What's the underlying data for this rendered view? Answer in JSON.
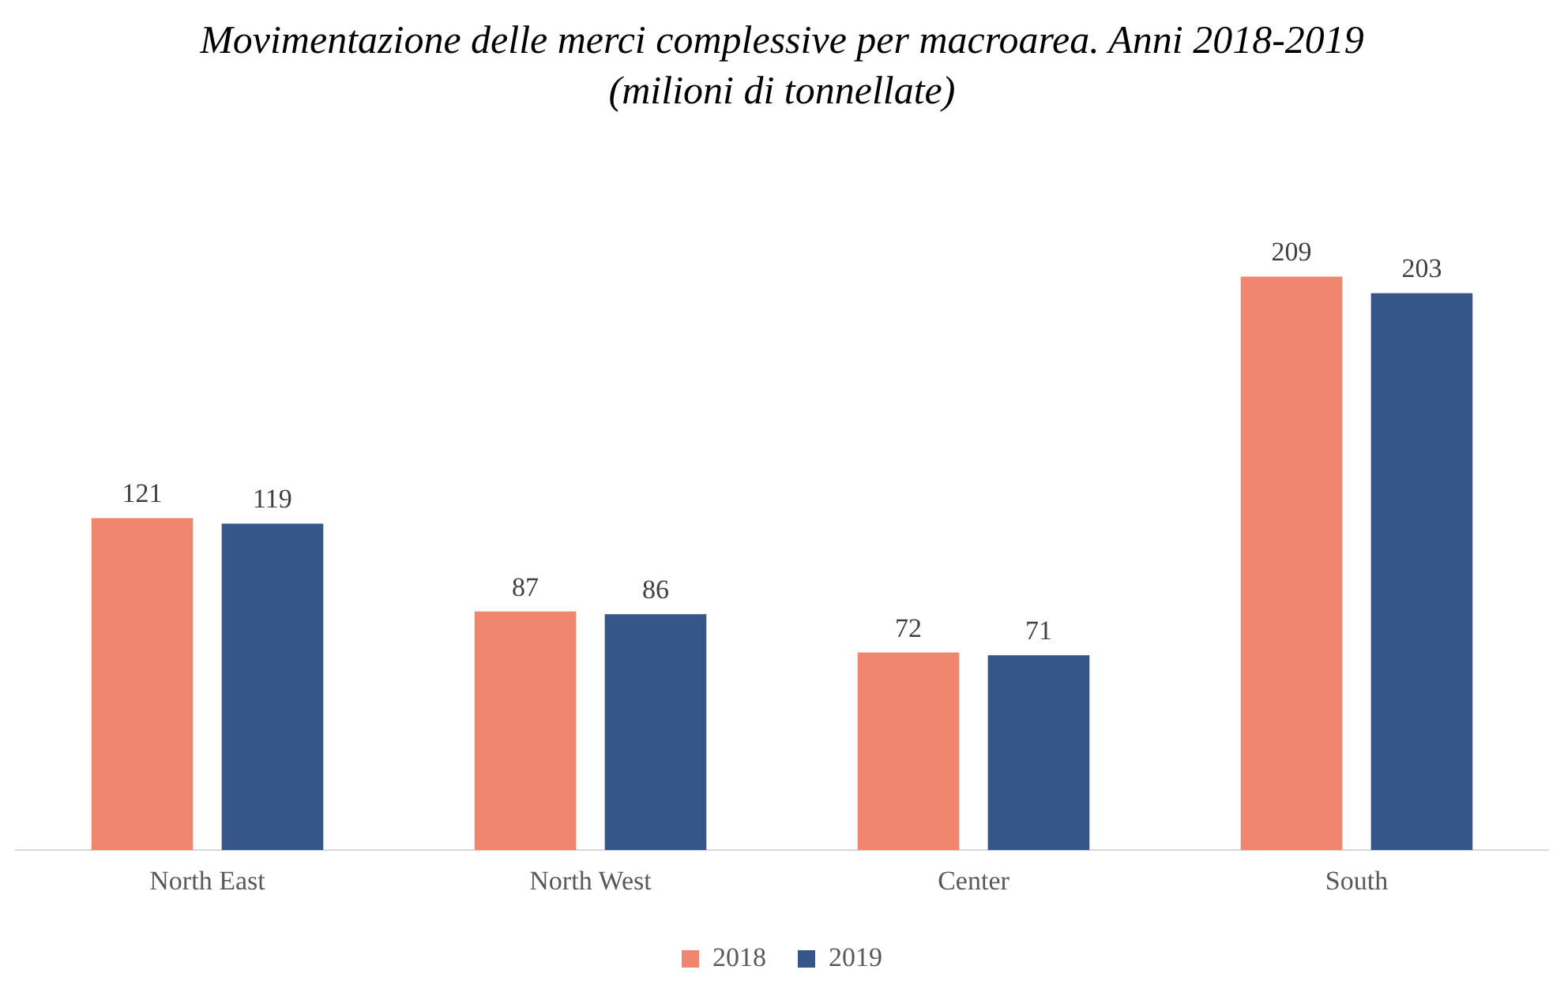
{
  "chart_data": {
    "type": "bar",
    "title": "Movimentazione delle merci complessive per macroarea. Anni 2018-2019",
    "subtitle": "(milioni di tonnellate)",
    "categories": [
      "North East",
      "North West",
      "Center",
      "South"
    ],
    "series": [
      {
        "name": "2018",
        "color": "#f0866e",
        "values": [
          121,
          87,
          72,
          209
        ]
      },
      {
        "name": "2019",
        "color": "#345689",
        "values": [
          119,
          86,
          71,
          203
        ]
      }
    ],
    "data_labels": true,
    "legend": "bottom",
    "grid": false,
    "tick_labels": "x"
  }
}
